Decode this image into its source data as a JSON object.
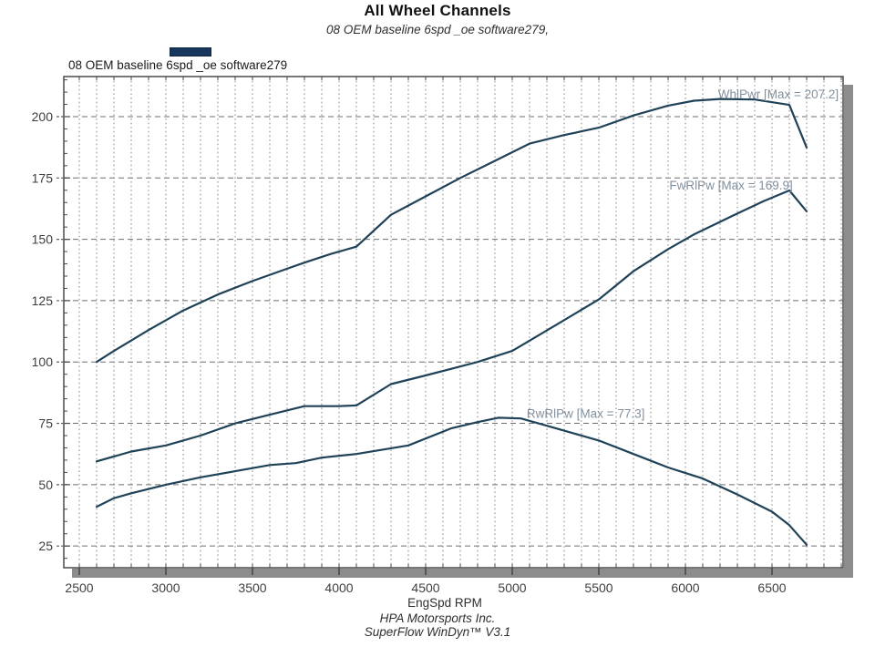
{
  "title": "All Wheel Channels",
  "subtitle": "08 OEM baseline 6spd _oe software279,",
  "legend": {
    "label": "08 OEM baseline 6spd _oe software279",
    "swatch_color": "#17375e"
  },
  "x_axis": {
    "label": "EngSpd RPM",
    "tick_values": [
      2500,
      3000,
      3500,
      4000,
      4500,
      5000,
      5500,
      6000,
      6500
    ],
    "minor_step": 100
  },
  "y_axis": {
    "tick_values": [
      200,
      175,
      150,
      125,
      100,
      75,
      50,
      25
    ],
    "minor_step": 5
  },
  "footer": {
    "line1": "HPA Motorsports Inc.",
    "line2": "SuperFlow WinDyn™ V3.1"
  },
  "colors": {
    "curve": "#1f4258",
    "legend_swatch": "#17375e",
    "grid_major": "#6f6f6f",
    "grid_minor": "#8f8f8f",
    "plot_border": "#4a4a4a",
    "shadow": "#8c8c8c",
    "curve_label": "#82909e",
    "tick_text": "#3f3f3f"
  },
  "chart_data": {
    "type": "line",
    "title": "All Wheel Channels",
    "subtitle": "08 OEM baseline 6spd _oe software279,",
    "xlabel": "EngSpd RPM",
    "ylabel": "",
    "xlim": [
      2410,
      6910
    ],
    "ylim": [
      16,
      216
    ],
    "grid": true,
    "legend_position": "top-left",
    "legend_entries": [
      "08 OEM baseline 6spd _oe software279"
    ],
    "series": [
      {
        "name": "WhlPwr",
        "annotation": "WhlPwr [Max = 207.2]",
        "max": 207.2,
        "label_anchor": [
          6885,
          207.5
        ],
        "points": [
          [
            2600,
            100
          ],
          [
            2700,
            104.5
          ],
          [
            2900,
            113
          ],
          [
            3100,
            121
          ],
          [
            3300,
            127.5
          ],
          [
            3500,
            133
          ],
          [
            3700,
            138
          ],
          [
            3800,
            140.5
          ],
          [
            3950,
            144
          ],
          [
            4100,
            147
          ],
          [
            4200,
            153.5
          ],
          [
            4300,
            160
          ],
          [
            4500,
            167.5
          ],
          [
            4700,
            175
          ],
          [
            4900,
            182
          ],
          [
            5100,
            189
          ],
          [
            5300,
            192.5
          ],
          [
            5500,
            195.5
          ],
          [
            5700,
            200.5
          ],
          [
            5900,
            204.5
          ],
          [
            6050,
            206.5
          ],
          [
            6200,
            207.2
          ],
          [
            6400,
            207
          ],
          [
            6600,
            204.8
          ],
          [
            6700,
            187.4
          ]
        ]
      },
      {
        "name": "FwRlPw",
        "annotation": "FwRlPw [Max = 169.9]",
        "max": 169.9,
        "label_anchor": [
          6620,
          170.2
        ],
        "points": [
          [
            2600,
            59.5
          ],
          [
            2800,
            63.5
          ],
          [
            3000,
            66
          ],
          [
            3200,
            70
          ],
          [
            3400,
            75
          ],
          [
            3600,
            78.5
          ],
          [
            3800,
            82
          ],
          [
            4000,
            82
          ],
          [
            4100,
            82.3
          ],
          [
            4300,
            91
          ],
          [
            4500,
            94.5
          ],
          [
            4800,
            100
          ],
          [
            5000,
            104.5
          ],
          [
            5250,
            115
          ],
          [
            5500,
            125.5
          ],
          [
            5700,
            137
          ],
          [
            5900,
            146
          ],
          [
            6050,
            152
          ],
          [
            6270,
            159.5
          ],
          [
            6450,
            165.5
          ],
          [
            6600,
            169.9
          ],
          [
            6700,
            161.4
          ]
        ]
      },
      {
        "name": "RwRlPw",
        "annotation": "RwRlPw [Max = 77.3]",
        "max": 77.3,
        "label_anchor": [
          5765,
          77.2
        ],
        "points": [
          [
            2600,
            41
          ],
          [
            2700,
            44.5
          ],
          [
            2800,
            46.5
          ],
          [
            3000,
            50
          ],
          [
            3200,
            53
          ],
          [
            3400,
            55.5
          ],
          [
            3600,
            58
          ],
          [
            3750,
            58.8
          ],
          [
            3900,
            61
          ],
          [
            4100,
            62.5
          ],
          [
            4400,
            66
          ],
          [
            4650,
            73
          ],
          [
            4800,
            75.5
          ],
          [
            4920,
            77.3
          ],
          [
            5050,
            77
          ],
          [
            5200,
            74
          ],
          [
            5350,
            71
          ],
          [
            5500,
            68
          ],
          [
            5700,
            62.5
          ],
          [
            5900,
            57
          ],
          [
            6100,
            52.5
          ],
          [
            6300,
            46
          ],
          [
            6500,
            39
          ],
          [
            6600,
            33.5
          ],
          [
            6700,
            25.5
          ]
        ]
      }
    ]
  }
}
